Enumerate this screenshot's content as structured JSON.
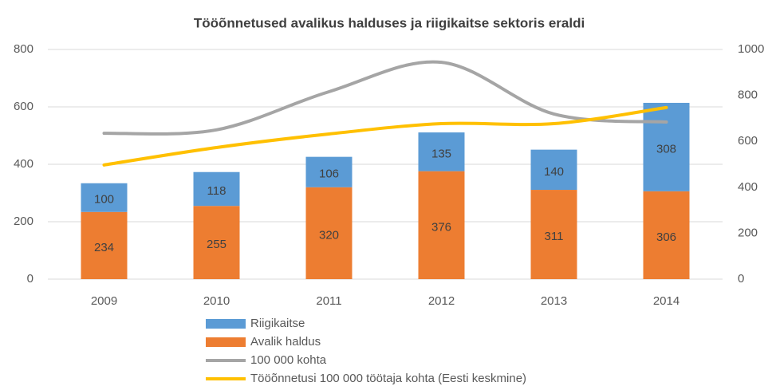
{
  "chart_data": {
    "type": "bar",
    "title": "Tööõnnetused avalikus halduses ja riigikaitse sektoris eraldi",
    "categories": [
      "2009",
      "2010",
      "2011",
      "2012",
      "2013",
      "2014"
    ],
    "series": [
      {
        "name": "Riigikaitse",
        "type": "bar",
        "color": "#5b9bd5",
        "values": [
          100,
          118,
          106,
          135,
          140,
          308
        ]
      },
      {
        "name": "Avalik haldus",
        "type": "bar",
        "color": "#ed7d31",
        "values": [
          234,
          255,
          320,
          376,
          311,
          306
        ]
      },
      {
        "name": "100 000 kohta",
        "type": "line",
        "axis": "y2",
        "color": "#a5a5a5",
        "values": [
          635,
          650,
          816,
          944,
          719,
          684
        ]
      },
      {
        "name": "Tööõnnetusi 100 000 töötaja kohta (Eesti keskmine)",
        "type": "line",
        "axis": "y2",
        "color": "#ffc000",
        "values": [
          497,
          573,
          632,
          677,
          677,
          747
        ]
      }
    ],
    "ylim": [
      0,
      800
    ],
    "yticks": [
      0,
      200,
      400,
      600,
      800
    ],
    "y2lim": [
      0,
      1000
    ],
    "y2ticks": [
      0,
      200,
      400,
      600,
      800,
      1000
    ],
    "stacked": true,
    "grid": true
  }
}
